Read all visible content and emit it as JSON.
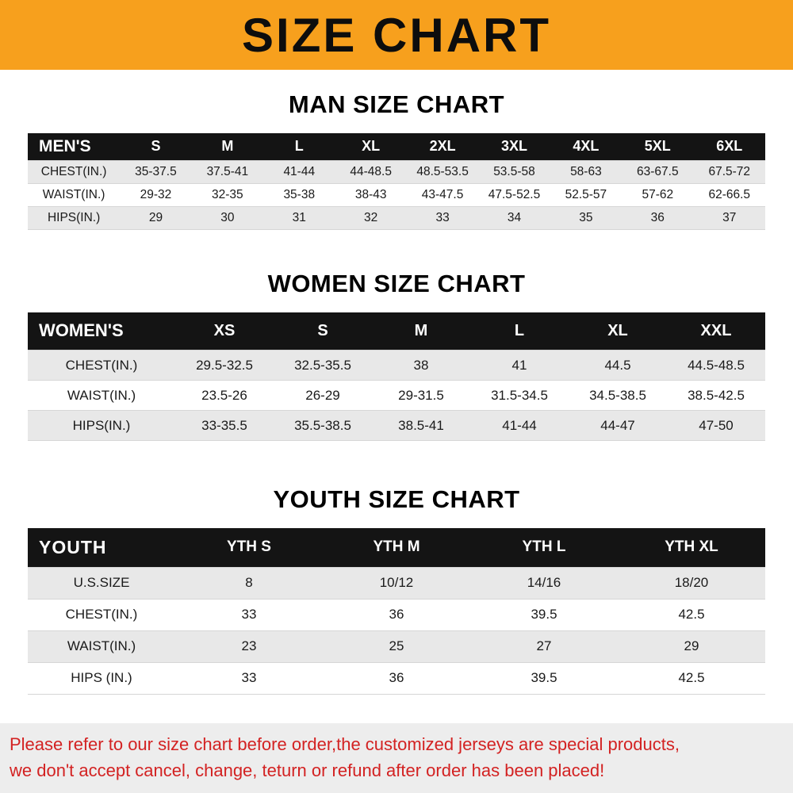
{
  "banner": {
    "title": "SIZE CHART"
  },
  "colors": {
    "banner_orange": "#F7A01D",
    "header_black": "#141414",
    "row_gray": "#E8E8E8",
    "footer_red": "#D32222",
    "footer_gray": "#EDEDED"
  },
  "chart_data": [
    {
      "type": "table",
      "title": "MAN SIZE CHART",
      "header": [
        "MEN'S",
        "S",
        "M",
        "L",
        "XL",
        "2XL",
        "3XL",
        "4XL",
        "5XL",
        "6XL"
      ],
      "rows": [
        [
          "CHEST(IN.)",
          "35-37.5",
          "37.5-41",
          "41-44",
          "44-48.5",
          "48.5-53.5",
          "53.5-58",
          "58-63",
          "63-67.5",
          "67.5-72"
        ],
        [
          "WAIST(IN.)",
          "29-32",
          "32-35",
          "35-38",
          "38-43",
          "43-47.5",
          "47.5-52.5",
          "52.5-57",
          "57-62",
          "62-66.5"
        ],
        [
          "HIPS(IN.)",
          "29",
          "30",
          "31",
          "32",
          "33",
          "34",
          "35",
          "36",
          "37"
        ]
      ]
    },
    {
      "type": "table",
      "title": "WOMEN SIZE CHART",
      "header": [
        "WOMEN'S",
        "XS",
        "S",
        "M",
        "L",
        "XL",
        "XXL"
      ],
      "rows": [
        [
          "CHEST(IN.)",
          "29.5-32.5",
          "32.5-35.5",
          "38",
          "41",
          "44.5",
          "44.5-48.5"
        ],
        [
          "WAIST(IN.)",
          "23.5-26",
          "26-29",
          "29-31.5",
          "31.5-34.5",
          "34.5-38.5",
          "38.5-42.5"
        ],
        [
          "HIPS(IN.)",
          "33-35.5",
          "35.5-38.5",
          "38.5-41",
          "41-44",
          "44-47",
          "47-50"
        ]
      ]
    },
    {
      "type": "table",
      "title": "YOUTH SIZE CHART",
      "header": [
        "YOUTH",
        "YTH S",
        "YTH M",
        "YTH L",
        "YTH XL"
      ],
      "rows": [
        [
          "U.S.SIZE",
          "8",
          "10/12",
          "14/16",
          "18/20"
        ],
        [
          "CHEST(IN.)",
          "33",
          "36",
          "39.5",
          "42.5"
        ],
        [
          "WAIST(IN.)",
          "23",
          "25",
          "27",
          "29"
        ],
        [
          "HIPS (IN.)",
          "33",
          "36",
          "39.5",
          "42.5"
        ]
      ]
    }
  ],
  "footer": {
    "line1": "Please refer to our size chart before order,the customized jerseys are special products,",
    "line2": "we don't accept cancel, change, teturn or refund after order has been placed!"
  }
}
